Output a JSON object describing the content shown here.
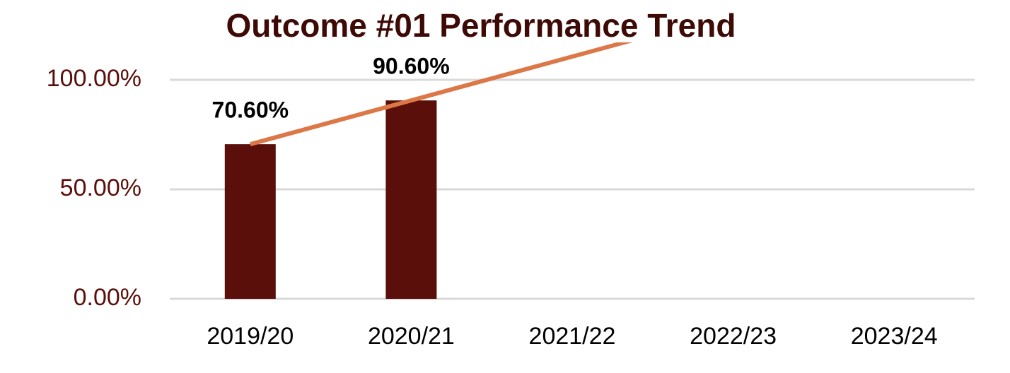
{
  "chart_data": {
    "type": "bar",
    "title": "Outcome #01 Performance Trend",
    "categories": [
      "2019/20",
      "2020/21",
      "2021/22",
      "2022/23",
      "2023/24"
    ],
    "values": [
      70.6,
      90.6,
      null,
      null,
      null
    ],
    "value_labels": [
      "70.60%",
      "90.60%",
      null,
      null,
      null
    ],
    "color": "#5a0f0a",
    "ylim": [
      0,
      100
    ],
    "yticks": [
      {
        "value": 0,
        "label": "0.00%"
      },
      {
        "value": 50,
        "label": "50.00%"
      },
      {
        "value": 100,
        "label": "100.00%"
      }
    ],
    "grid": true,
    "trendline": {
      "type": "linear",
      "color": "#dc7747"
    }
  }
}
